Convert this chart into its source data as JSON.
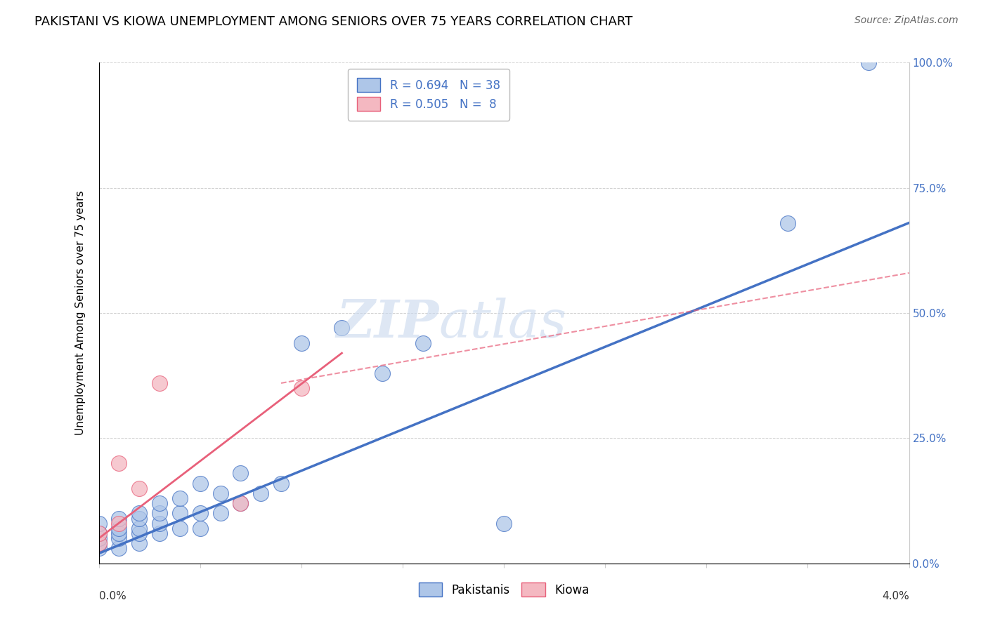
{
  "title": "PAKISTANI VS KIOWA UNEMPLOYMENT AMONG SENIORS OVER 75 YEARS CORRELATION CHART",
  "source": "Source: ZipAtlas.com",
  "ylabel": "Unemployment Among Seniors over 75 years",
  "ytick_labels": [
    "0.0%",
    "25.0%",
    "50.0%",
    "75.0%",
    "100.0%"
  ],
  "ytick_values": [
    0,
    0.25,
    0.5,
    0.75,
    1.0
  ],
  "xlim": [
    0,
    0.04
  ],
  "ylim": [
    0,
    1.0
  ],
  "pakistani_color": "#aec6e8",
  "kiowa_color": "#f4b8c1",
  "line_pakistani_color": "#4472c4",
  "line_kiowa_color": "#e8607a",
  "pakistani_x": [
    0.0,
    0.0,
    0.0,
    0.0,
    0.0,
    0.001,
    0.001,
    0.001,
    0.001,
    0.001,
    0.002,
    0.002,
    0.002,
    0.002,
    0.002,
    0.003,
    0.003,
    0.003,
    0.003,
    0.004,
    0.004,
    0.004,
    0.005,
    0.005,
    0.005,
    0.006,
    0.006,
    0.007,
    0.007,
    0.008,
    0.009,
    0.01,
    0.012,
    0.014,
    0.016,
    0.02,
    0.034,
    0.038
  ],
  "pakistani_y": [
    0.03,
    0.04,
    0.05,
    0.06,
    0.08,
    0.03,
    0.05,
    0.06,
    0.07,
    0.09,
    0.04,
    0.06,
    0.07,
    0.09,
    0.1,
    0.06,
    0.08,
    0.1,
    0.12,
    0.07,
    0.1,
    0.13,
    0.07,
    0.1,
    0.16,
    0.1,
    0.14,
    0.12,
    0.18,
    0.14,
    0.16,
    0.44,
    0.47,
    0.38,
    0.44,
    0.08,
    0.68,
    1.0
  ],
  "kiowa_x": [
    0.0,
    0.0,
    0.001,
    0.001,
    0.002,
    0.003,
    0.007,
    0.01
  ],
  "kiowa_y": [
    0.04,
    0.06,
    0.08,
    0.2,
    0.15,
    0.36,
    0.12,
    0.35
  ],
  "pak_line_x": [
    0.0,
    0.04
  ],
  "pak_line_y": [
    0.02,
    0.68
  ],
  "kiowa_line_x": [
    0.0,
    0.012
  ],
  "kiowa_line_y": [
    0.05,
    0.42
  ]
}
